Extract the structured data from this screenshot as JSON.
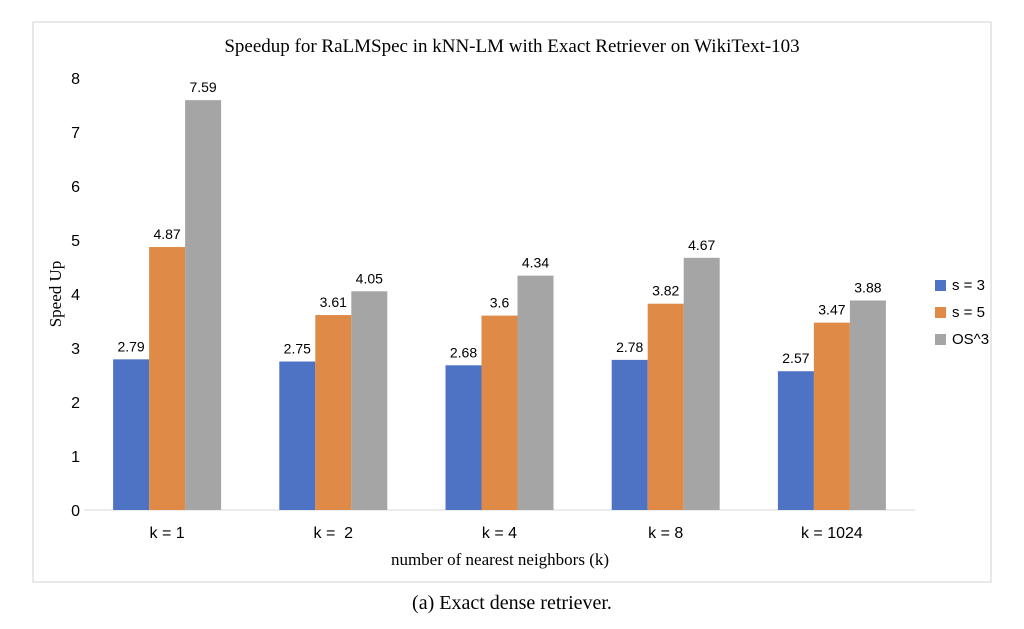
{
  "chart_data": {
    "type": "bar",
    "title": "Speedup for RaLMSpec in kNN-LM with Exact Retriever on WikiText-103",
    "xlabel": "number of nearest neighbors (k)",
    "ylabel": "Speed Up",
    "categories": [
      "k = 1",
      "k =  2",
      "k = 4",
      "k = 8",
      "k = 1024"
    ],
    "ylim": [
      0,
      8
    ],
    "yticks": [
      "0",
      "1",
      "2",
      "3",
      "4",
      "5",
      "6",
      "7",
      "8"
    ],
    "grid": false,
    "legend_position": "right",
    "series": [
      {
        "name": "s = 3",
        "color": "#4e72c4",
        "values": [
          2.79,
          2.75,
          2.68,
          2.78,
          2.57
        ],
        "labels": [
          "2.79",
          "2.75",
          "2.68",
          "2.78",
          "2.57"
        ]
      },
      {
        "name": "s = 5",
        "color": "#e08a47",
        "values": [
          4.87,
          3.61,
          3.6,
          3.82,
          3.47
        ],
        "labels": [
          "4.87",
          "3.61",
          "3.6",
          "3.82",
          "3.47"
        ]
      },
      {
        "name": "OS^3",
        "color": "#a5a5a5",
        "values": [
          7.59,
          4.05,
          4.34,
          4.67,
          3.88
        ],
        "labels": [
          "7.59",
          "4.05",
          "4.34",
          "4.67",
          "3.88"
        ]
      }
    ]
  },
  "caption": "(a)  Exact dense retriever."
}
